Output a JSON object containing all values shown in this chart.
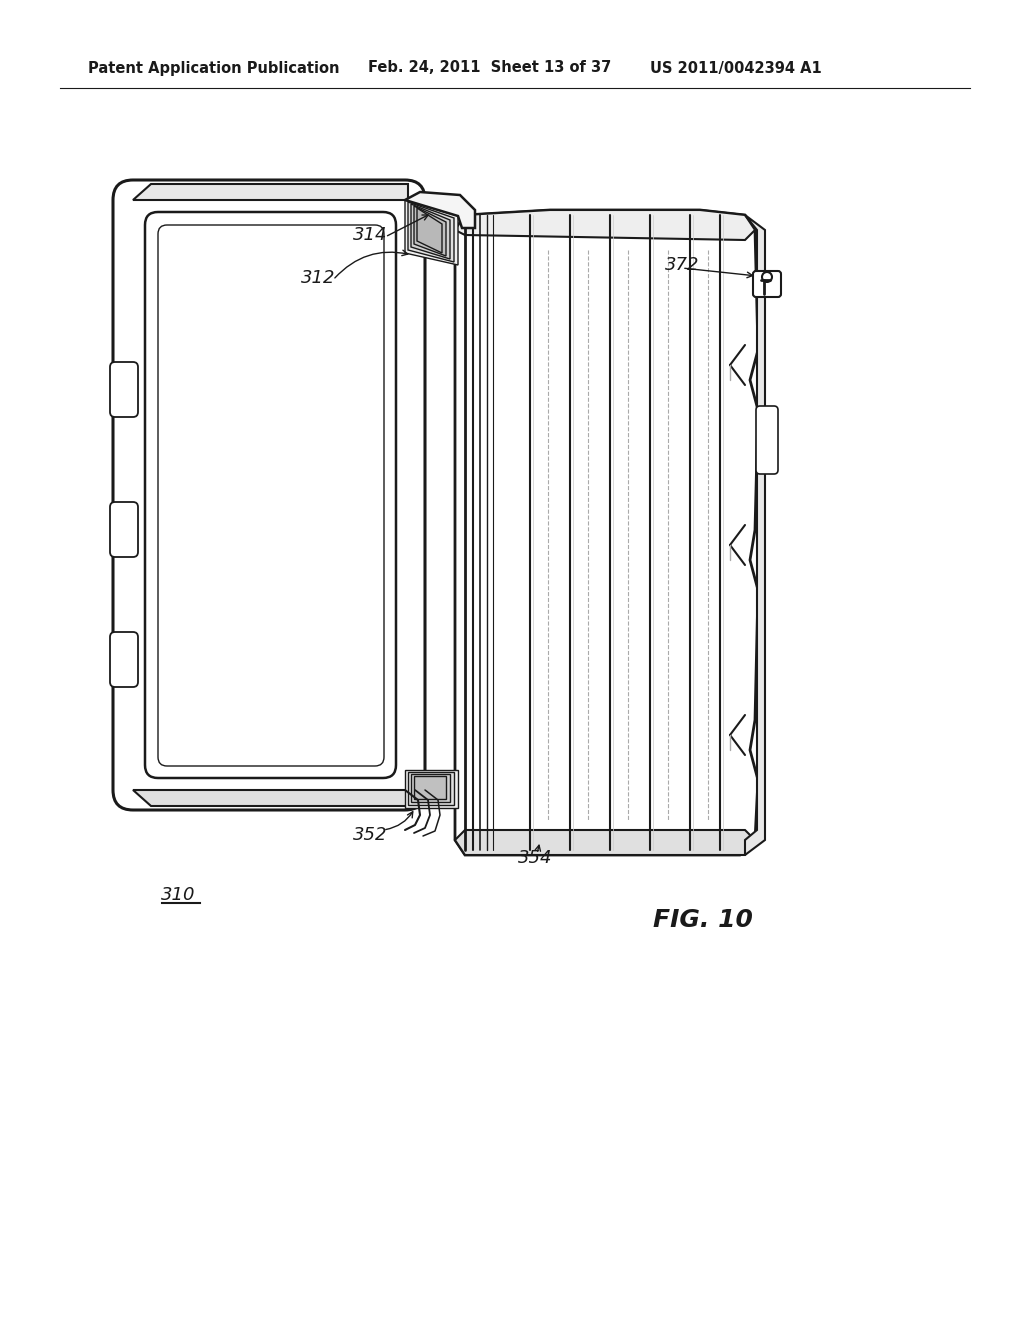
{
  "title_left": "Patent Application Publication",
  "title_center": "Feb. 24, 2011  Sheet 13 of 37",
  "title_right": "US 2011/0042394 A1",
  "fig_label": "FIG. 10",
  "background_color": "#ffffff",
  "line_color": "#1a1a1a",
  "gray_color": "#aaaaaa",
  "light_gray": "#d8d8d8",
  "header_fontsize": 10.5,
  "fig_label_fontsize": 18,
  "label_fontsize": 13
}
